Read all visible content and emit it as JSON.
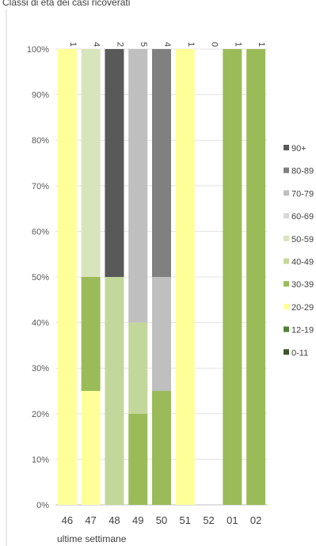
{
  "page_title": "Classi di età dei casi ricoverati",
  "chart_data": {
    "type": "bar",
    "stacked": true,
    "percent": true,
    "title": "",
    "xlabel": "ultime settimane",
    "ylabel": "",
    "ylim": [
      0,
      100
    ],
    "y_ticks": [
      "0%",
      "10%",
      "20%",
      "30%",
      "40%",
      "50%",
      "60%",
      "70%",
      "80%",
      "90%",
      "100%"
    ],
    "categories": [
      "46",
      "47",
      "48",
      "49",
      "50",
      "51",
      "52",
      "01",
      "02"
    ],
    "counts": [
      "1",
      "4",
      "2",
      "5",
      "4",
      "1",
      "0",
      "1",
      "1"
    ],
    "grid": true,
    "legend_position": "right",
    "series": [
      {
        "name": "0-11",
        "color": "#375623",
        "values": [
          0,
          0,
          0,
          0,
          0,
          0,
          0,
          0,
          0
        ]
      },
      {
        "name": "12-19",
        "color": "#548235",
        "values": [
          0,
          0,
          0,
          0,
          0,
          0,
          0,
          0,
          0
        ]
      },
      {
        "name": "20-29",
        "color": "#ffff99",
        "values": [
          100,
          25,
          0,
          0,
          0,
          100,
          0,
          0,
          0
        ]
      },
      {
        "name": "30-39",
        "color": "#9bbb59",
        "values": [
          0,
          25,
          0,
          20,
          25,
          0,
          0,
          100,
          100
        ]
      },
      {
        "name": "40-49",
        "color": "#c4d79b",
        "values": [
          0,
          0,
          50,
          20,
          0,
          0,
          0,
          0,
          0
        ]
      },
      {
        "name": "50-59",
        "color": "#d8e4bc",
        "values": [
          0,
          50,
          0,
          0,
          0,
          0,
          0,
          0,
          0
        ]
      },
      {
        "name": "60-69",
        "color": "#d9d9d9",
        "values": [
          0,
          0,
          0,
          0,
          0,
          0,
          0,
          0,
          0
        ]
      },
      {
        "name": "70-79",
        "color": "#bfbfbf",
        "values": [
          0,
          0,
          0,
          60,
          25,
          0,
          0,
          0,
          0
        ]
      },
      {
        "name": "80-89",
        "color": "#808080",
        "values": [
          0,
          0,
          0,
          0,
          50,
          0,
          0,
          0,
          0
        ]
      },
      {
        "name": "90+",
        "color": "#595959",
        "values": [
          0,
          0,
          50,
          0,
          0,
          0,
          0,
          0,
          0
        ]
      }
    ]
  }
}
